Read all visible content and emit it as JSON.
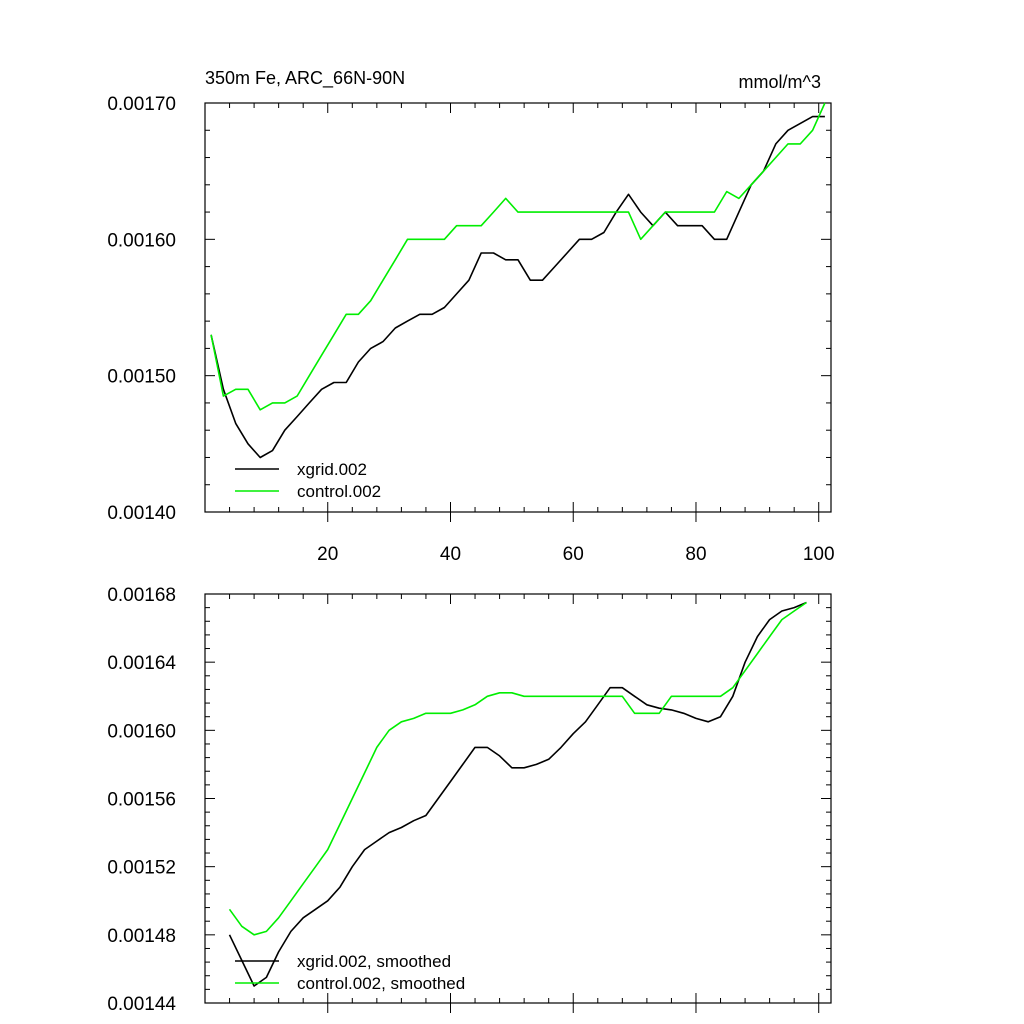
{
  "chart_data": [
    {
      "type": "line",
      "title": "350m Fe, ARC_66N-90N",
      "units": "mmol/m^3",
      "xlim": [
        0,
        102
      ],
      "ylim": [
        0.0014,
        0.0017
      ],
      "xticks": [
        20,
        40,
        60,
        80,
        100
      ],
      "xtick_labels": [
        "20",
        "40",
        "60",
        "80",
        "100"
      ],
      "yticks": [
        0.0014,
        0.0015,
        0.0016,
        0.0017
      ],
      "ytick_labels": [
        "0.00140",
        "0.00150",
        "0.00160",
        "0.00170"
      ],
      "legend_location": "bottom-left",
      "series": [
        {
          "name": "xgrid.002",
          "color": "#000000",
          "x": [
            1,
            3,
            5,
            7,
            9,
            11,
            13,
            15,
            17,
            19,
            21,
            23,
            25,
            27,
            29,
            31,
            33,
            35,
            37,
            39,
            41,
            43,
            45,
            47,
            49,
            51,
            53,
            55,
            57,
            59,
            61,
            63,
            65,
            67,
            69,
            71,
            73,
            75,
            77,
            79,
            81,
            83,
            85,
            87,
            89,
            91,
            93,
            95,
            97,
            99,
            101
          ],
          "y": [
            0.00153,
            0.00149,
            0.001465,
            0.00145,
            0.00144,
            0.001445,
            0.00146,
            0.00147,
            0.00148,
            0.00149,
            0.001495,
            0.001495,
            0.00151,
            0.00152,
            0.001525,
            0.001535,
            0.00154,
            0.001545,
            0.001545,
            0.00155,
            0.00156,
            0.00157,
            0.00159,
            0.00159,
            0.001585,
            0.001585,
            0.00157,
            0.00157,
            0.00158,
            0.00159,
            0.0016,
            0.0016,
            0.001605,
            0.00162,
            0.001633,
            0.00162,
            0.00161,
            0.00162,
            0.00161,
            0.00161,
            0.00161,
            0.0016,
            0.0016,
            0.00162,
            0.00164,
            0.00165,
            0.00167,
            0.00168,
            0.001685,
            0.00169,
            0.00169
          ]
        },
        {
          "name": "control.002",
          "color": "#00ee00",
          "x": [
            1,
            3,
            5,
            7,
            9,
            11,
            13,
            15,
            17,
            19,
            21,
            23,
            25,
            27,
            29,
            31,
            33,
            35,
            37,
            39,
            41,
            43,
            45,
            47,
            49,
            51,
            53,
            55,
            57,
            59,
            61,
            63,
            65,
            67,
            69,
            71,
            73,
            75,
            77,
            79,
            81,
            83,
            85,
            87,
            89,
            91,
            93,
            95,
            97,
            99,
            101
          ],
          "y": [
            0.00153,
            0.001485,
            0.00149,
            0.00149,
            0.001475,
            0.00148,
            0.00148,
            0.001485,
            0.0015,
            0.001515,
            0.00153,
            0.001545,
            0.001545,
            0.001555,
            0.00157,
            0.001585,
            0.0016,
            0.0016,
            0.0016,
            0.0016,
            0.00161,
            0.00161,
            0.00161,
            0.00162,
            0.00163,
            0.00162,
            0.00162,
            0.00162,
            0.00162,
            0.00162,
            0.00162,
            0.00162,
            0.00162,
            0.00162,
            0.00162,
            0.0016,
            0.00161,
            0.00162,
            0.00162,
            0.00162,
            0.00162,
            0.00162,
            0.001635,
            0.00163,
            0.00164,
            0.00165,
            0.00166,
            0.00167,
            0.00167,
            0.00168,
            0.0017
          ]
        }
      ]
    },
    {
      "type": "line",
      "title": "",
      "xlim": [
        0,
        102
      ],
      "ylim": [
        0.00144,
        0.00168
      ],
      "xticks": [
        20,
        40,
        60,
        80,
        100
      ],
      "yticks": [
        0.00144,
        0.00148,
        0.00152,
        0.00156,
        0.0016,
        0.00164,
        0.00168
      ],
      "ytick_labels": [
        "0.00144",
        "0.00148",
        "0.00152",
        "0.00156",
        "0.00160",
        "0.00164",
        "0.00168"
      ],
      "legend_location": "bottom-left",
      "series": [
        {
          "name": "xgrid.002, smoothed",
          "color": "#000000",
          "x": [
            4,
            6,
            8,
            10,
            12,
            14,
            16,
            18,
            20,
            22,
            24,
            26,
            28,
            30,
            32,
            34,
            36,
            38,
            40,
            42,
            44,
            46,
            48,
            50,
            52,
            54,
            56,
            58,
            60,
            62,
            64,
            66,
            68,
            70,
            72,
            74,
            76,
            78,
            80,
            82,
            84,
            86,
            88,
            90,
            92,
            94,
            96,
            98
          ],
          "y": [
            0.00148,
            0.001465,
            0.00145,
            0.001455,
            0.00147,
            0.001482,
            0.00149,
            0.001495,
            0.0015,
            0.001508,
            0.00152,
            0.00153,
            0.001535,
            0.00154,
            0.001543,
            0.001547,
            0.00155,
            0.00156,
            0.00157,
            0.00158,
            0.00159,
            0.00159,
            0.001585,
            0.001578,
            0.001578,
            0.00158,
            0.001583,
            0.00159,
            0.001598,
            0.001605,
            0.001615,
            0.001625,
            0.001625,
            0.00162,
            0.001615,
            0.001613,
            0.001612,
            0.00161,
            0.001607,
            0.001605,
            0.001608,
            0.00162,
            0.00164,
            0.001655,
            0.001665,
            0.00167,
            0.001672,
            0.001675
          ]
        },
        {
          "name": "control.002, smoothed",
          "color": "#00ee00",
          "x": [
            4,
            6,
            8,
            10,
            12,
            14,
            16,
            18,
            20,
            22,
            24,
            26,
            28,
            30,
            32,
            34,
            36,
            38,
            40,
            42,
            44,
            46,
            48,
            50,
            52,
            54,
            56,
            58,
            60,
            62,
            64,
            66,
            68,
            70,
            72,
            74,
            76,
            78,
            80,
            82,
            84,
            86,
            88,
            90,
            92,
            94,
            96,
            98
          ],
          "y": [
            0.001495,
            0.001485,
            0.00148,
            0.001482,
            0.00149,
            0.0015,
            0.00151,
            0.00152,
            0.00153,
            0.001545,
            0.00156,
            0.001575,
            0.00159,
            0.0016,
            0.001605,
            0.001607,
            0.00161,
            0.00161,
            0.00161,
            0.001612,
            0.001615,
            0.00162,
            0.001622,
            0.001622,
            0.00162,
            0.00162,
            0.00162,
            0.00162,
            0.00162,
            0.00162,
            0.00162,
            0.00162,
            0.00162,
            0.00161,
            0.00161,
            0.00161,
            0.00162,
            0.00162,
            0.00162,
            0.00162,
            0.00162,
            0.001625,
            0.001635,
            0.001645,
            0.001655,
            0.001665,
            0.00167,
            0.001675
          ]
        }
      ]
    }
  ]
}
